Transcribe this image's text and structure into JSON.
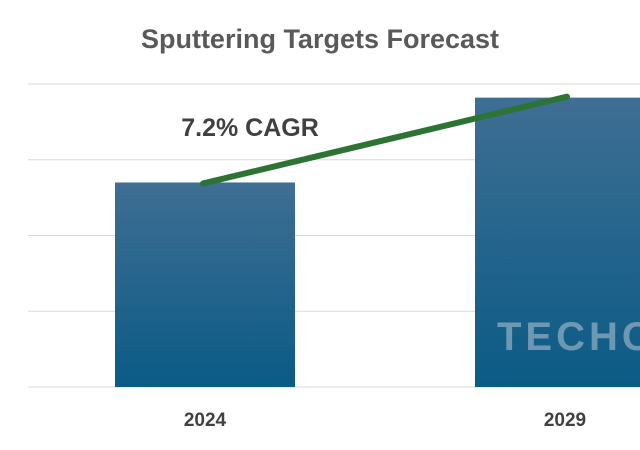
{
  "chart_data": {
    "type": "bar",
    "title": "Sputtering Targets Forecast",
    "categories": [
      "2024",
      "2029"
    ],
    "values": [
      2.7,
      3.82
    ],
    "ylim": [
      0,
      4
    ],
    "grid": true,
    "legend": "none",
    "annotations": [
      "7.2% CAGR"
    ],
    "trend_line": {
      "from": "2024",
      "to": "2029"
    },
    "watermark": "TECHC"
  },
  "colors": {
    "bar_top": "#3f6e93",
    "bar_bottom": "#0a5b86",
    "trend": "#2d7333",
    "grid": "#d9d9d9",
    "title": "#595959",
    "ticks": "#404040"
  }
}
